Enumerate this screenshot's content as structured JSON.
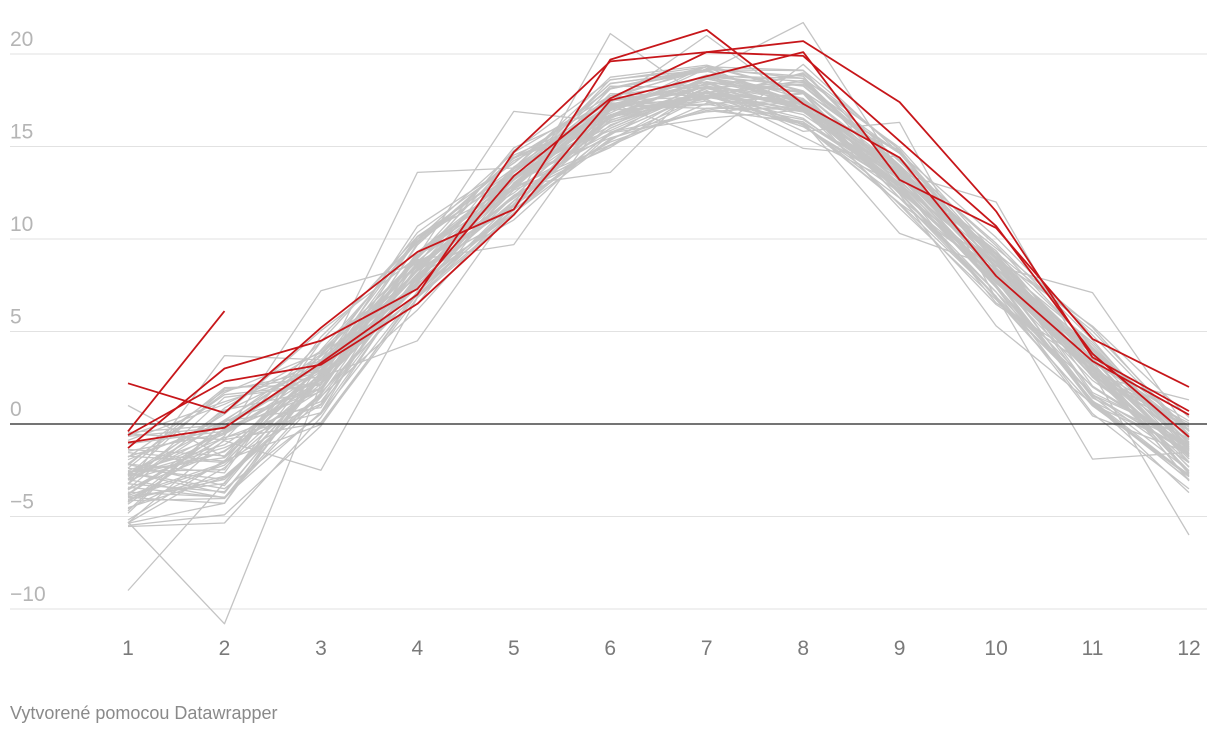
{
  "chart_data": {
    "type": "line",
    "title": "",
    "xlabel": "",
    "ylabel": "",
    "x": [
      1,
      2,
      3,
      4,
      5,
      6,
      7,
      8,
      9,
      10,
      11,
      12
    ],
    "x_tick_labels": [
      "1",
      "2",
      "3",
      "4",
      "5",
      "6",
      "7",
      "8",
      "9",
      "10",
      "11",
      "12"
    ],
    "ylim": [
      -11,
      21
    ],
    "y_ticks": [
      20,
      15,
      10,
      5,
      0,
      -5,
      -10
    ],
    "y_tick_labels": [
      "20",
      "15",
      "10",
      "5",
      "0",
      "−5",
      "−10"
    ],
    "zero_line": true,
    "grid": true,
    "colors": {
      "highlight": "#c7161a",
      "background_series": "#c4c4c4",
      "zero_line": "#222222",
      "grid": "#e2e2e2"
    },
    "highlighted_series": [
      {
        "name": "highlight-1",
        "values": [
          -0.6,
          2.3,
          3.2,
          6.5,
          11.3,
          17.5,
          18.8,
          20.1,
          13.2,
          10.6,
          4.6,
          2.0
        ]
      },
      {
        "name": "highlight-2",
        "values": [
          -1.3,
          3.0,
          4.5,
          7.3,
          13.4,
          17.6,
          20.1,
          20.7,
          17.4,
          11.5,
          3.6,
          0.7
        ]
      },
      {
        "name": "highlight-3",
        "values": [
          -0.4,
          6.1
        ]
      },
      {
        "name": "highlight-4",
        "values": [
          2.2,
          0.6,
          5.2,
          9.3,
          11.6,
          19.7,
          21.3,
          17.3,
          14.4,
          8.0,
          3.4,
          0.5
        ]
      },
      {
        "name": "highlight-5",
        "values": [
          -1.0,
          -0.2,
          3.3,
          7.0,
          14.7,
          19.6,
          20.1,
          19.9,
          15.3,
          10.7,
          3.8,
          -0.7
        ]
      }
    ],
    "background_series_count": 70,
    "background_series_range": {
      "min": [
        -9.0,
        -10.8,
        -2.5,
        4.5,
        9.7,
        13.6,
        15.5,
        14.9,
        10.3,
        5.3,
        -1.9,
        -6.0
      ],
      "mean": [
        -3.2,
        -1.6,
        2.3,
        8.2,
        12.9,
        16.7,
        18.0,
        17.4,
        13.3,
        8.0,
        2.6,
        -1.6
      ],
      "max": [
        1.0,
        3.7,
        7.2,
        13.6,
        16.9,
        21.1,
        21.0,
        21.7,
        16.3,
        12.0,
        7.1,
        1.3
      ]
    },
    "credit": "Vytvorené pomocou Datawrapper"
  }
}
